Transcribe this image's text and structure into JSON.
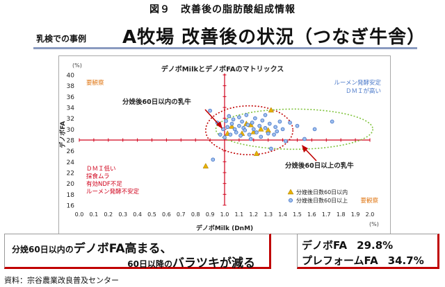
{
  "figure_title": "図９　改善後の脂肪酸組成情報",
  "section_label": "乳検での事例",
  "heading": "A牧場 改善後の状況（つなぎ牛舎）",
  "chart_data": {
    "type": "scatter",
    "title": "デノボMilkとデノボFAのマトリックス",
    "xlabel": "デノボMilk (DnM)",
    "ylabel": "デノボFA",
    "x_unit": "(%)",
    "y_unit": "(%)",
    "xlim": [
      0.0,
      2.0
    ],
    "ylim": [
      16,
      40
    ],
    "x_ticks": [
      "0.0",
      "0.1",
      "0.2",
      "0.3",
      "0.4",
      "0.5",
      "0.6",
      "0.7",
      "0.8",
      "0.9",
      "1.0",
      "1.1",
      "1.2",
      "1.3",
      "1.4",
      "1.5",
      "1.6",
      "1.7",
      "1.8",
      "1.9",
      "2.0"
    ],
    "y_ticks": [
      "16",
      "18",
      "20",
      "22",
      "24",
      "26",
      "28",
      "30",
      "32",
      "34",
      "36",
      "38",
      "40"
    ],
    "reference_lines": {
      "x": 1.0,
      "y": 28,
      "color": "#d0021b"
    },
    "quadrant_labels": {
      "top_left": "要観察",
      "top_right": [
        "ルーメン発酵安定",
        "ＤＭＩが高い"
      ],
      "bottom_left": [
        "ＤＭＩ低い",
        "採食ムラ",
        "有効NDF不足",
        "ルーメン発酵不安定"
      ],
      "bottom_right": "要観察"
    },
    "annotations": {
      "within_60": "分娩後60日以内の乳牛",
      "after_60": "分娩後60日以上の乳牛"
    },
    "series": [
      {
        "name": "分娩後日数60日以内",
        "marker": "triangle",
        "color": "#e8b000",
        "points": [
          [
            0.87,
            23.2
          ],
          [
            1.05,
            30.5
          ],
          [
            1.12,
            29.2
          ],
          [
            1.15,
            31.0
          ],
          [
            1.2,
            29.5
          ],
          [
            1.22,
            25.5
          ],
          [
            1.25,
            30.0
          ],
          [
            1.3,
            29.8
          ],
          [
            1.32,
            33.5
          ],
          [
            1.02,
            29.2
          ],
          [
            1.18,
            30.8
          ]
        ]
      },
      {
        "name": "分娩後日数60日以上",
        "marker": "circle",
        "color": "#4a78c9",
        "points": [
          [
            0.9,
            33.4
          ],
          [
            0.92,
            24.4
          ],
          [
            0.95,
            31.2
          ],
          [
            0.97,
            29.0
          ],
          [
            0.99,
            30.0
          ],
          [
            1.0,
            28.5
          ],
          [
            1.01,
            31.5
          ],
          [
            1.02,
            30.4
          ],
          [
            1.03,
            32.4
          ],
          [
            1.04,
            29.0
          ],
          [
            1.05,
            31.0
          ],
          [
            1.06,
            31.8
          ],
          [
            1.07,
            30.0
          ],
          [
            1.08,
            29.4
          ],
          [
            1.1,
            32.2
          ],
          [
            1.1,
            30.6
          ],
          [
            1.11,
            28.8
          ],
          [
            1.12,
            31.4
          ],
          [
            1.13,
            30.2
          ],
          [
            1.14,
            29.8
          ],
          [
            1.15,
            32.6
          ],
          [
            1.16,
            30.8
          ],
          [
            1.17,
            29.0
          ],
          [
            1.18,
            28.2
          ],
          [
            1.19,
            31.2
          ],
          [
            1.2,
            30.0
          ],
          [
            1.21,
            32.0
          ],
          [
            1.22,
            29.4
          ],
          [
            1.24,
            30.6
          ],
          [
            1.25,
            28.6
          ],
          [
            1.26,
            31.6
          ],
          [
            1.28,
            30.2
          ],
          [
            1.3,
            29.2
          ],
          [
            1.31,
            31.0
          ],
          [
            1.32,
            26.4
          ],
          [
            1.35,
            30.4
          ],
          [
            1.36,
            29.6
          ],
          [
            1.38,
            31.4
          ],
          [
            1.4,
            30.0
          ],
          [
            1.42,
            27.8
          ],
          [
            1.45,
            31.2
          ],
          [
            1.5,
            30.6
          ],
          [
            1.55,
            28.2
          ],
          [
            1.62,
            30.0
          ],
          [
            1.74,
            31.4
          ],
          [
            1.28,
            32.6
          ],
          [
            1.34,
            29.0
          ]
        ]
      }
    ],
    "ellipses": [
      {
        "label": "within_60",
        "cx": 1.17,
        "cy": 29.8,
        "rx": 0.3,
        "ry": 4.5,
        "color": "#c00000",
        "style": "dotted"
      },
      {
        "label": "after_60",
        "cx": 1.48,
        "cy": 30.0,
        "rx": 0.54,
        "ry": 3.7,
        "color": "#7ec23a",
        "style": "dotted"
      }
    ]
  },
  "callouts": {
    "left_line1_prefix": "分娩60日以内の",
    "left_line1_emph": "デノボFA高まる、",
    "left_line2_prefix": "60日以降の",
    "left_line2_emph": "バラツキが減る",
    "denovo_fa_label": "デノボFA",
    "denovo_fa_value": "29.8%",
    "preformed_fa_label": "プレフォームFA",
    "preformed_fa_value": "34.7%"
  },
  "source_note": "資料：宗谷農業改良普及センター"
}
